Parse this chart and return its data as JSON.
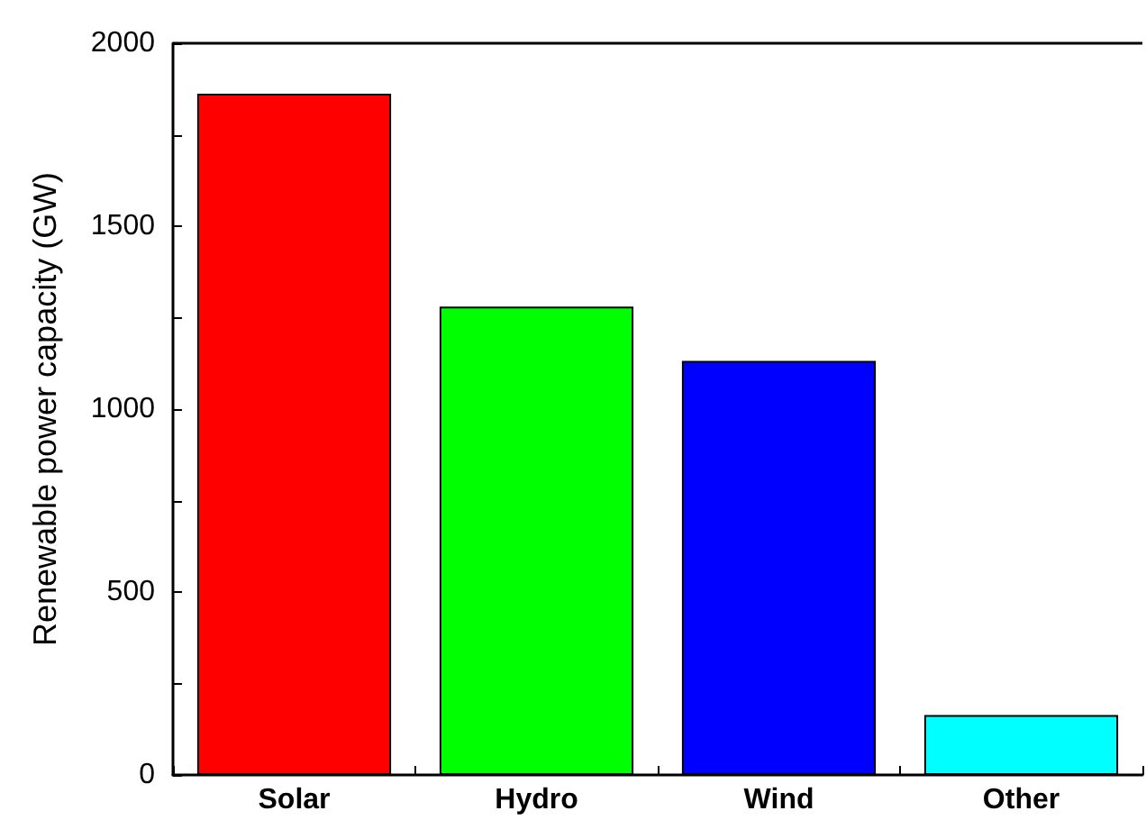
{
  "chart_data": {
    "type": "bar",
    "ylabel": "Renewable power capacity (GW)",
    "categories": [
      "Solar",
      "Hydro",
      "Wind",
      "Other"
    ],
    "values": [
      1862,
      1280,
      1132,
      164
    ],
    "colors": [
      "#ff0000",
      "#00ff00",
      "#0000ff",
      "#00ffff"
    ],
    "ylim": [
      0,
      2000
    ],
    "yticks": [
      0,
      {
        "value": 250,
        "label": null
      },
      500,
      {
        "value": 750,
        "label": null
      },
      1000,
      {
        "value": 1250,
        "label": null
      },
      1500,
      {
        "value": 1750,
        "label": null
      },
      2000
    ],
    "grid": false
  }
}
